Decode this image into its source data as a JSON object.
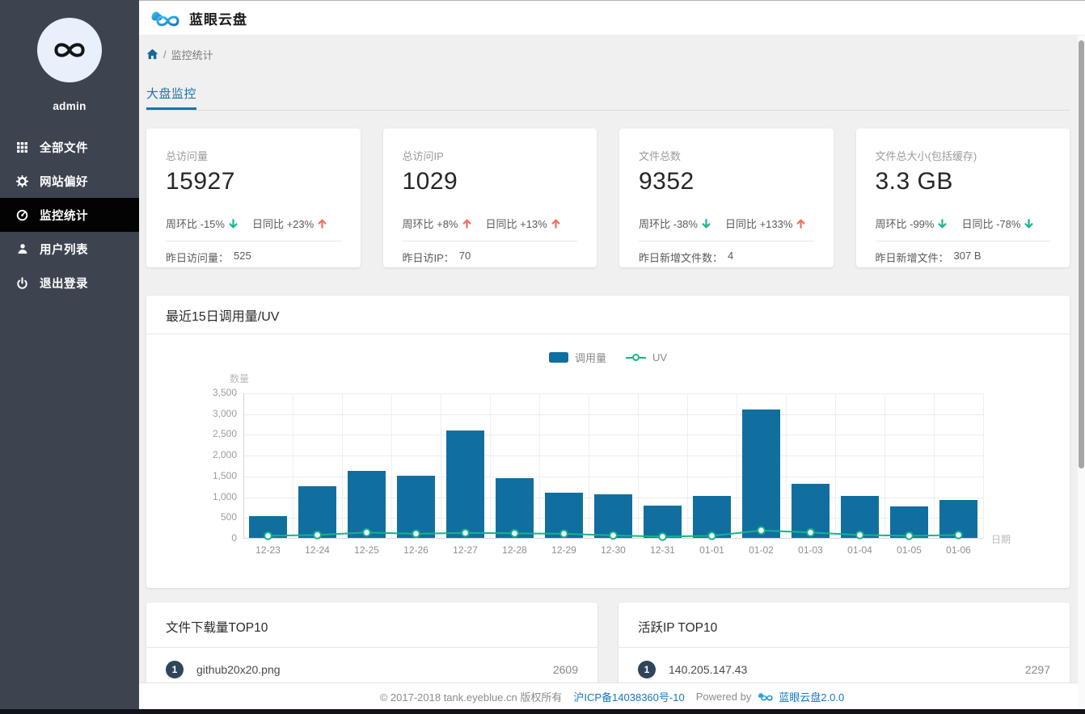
{
  "header": {
    "brand": "蓝眼云盘"
  },
  "sidebar": {
    "username": "admin",
    "items": [
      {
        "key": "all-files",
        "icon": "grid-icon",
        "label": "全部文件",
        "active": false
      },
      {
        "key": "site-preferences",
        "icon": "gear-icon",
        "label": "网站偏好",
        "active": false
      },
      {
        "key": "monitor-stats",
        "icon": "dashboard-icon",
        "label": "监控统计",
        "active": true
      },
      {
        "key": "user-list",
        "icon": "user-icon",
        "label": "用户列表",
        "active": false
      },
      {
        "key": "logout",
        "icon": "power-icon",
        "label": "退出登录",
        "active": false
      }
    ]
  },
  "breadcrumb": {
    "separator": "/",
    "current": "监控统计"
  },
  "tabs": [
    {
      "label": "大盘监控",
      "active": true
    }
  ],
  "stat_cards": [
    {
      "title": "总访问量",
      "value": "15927",
      "trends": [
        {
          "label": "周环比 -15%",
          "dir": "down"
        },
        {
          "label": "日同比 +23%",
          "dir": "up"
        }
      ],
      "footer_label": "昨日访问量：",
      "footer_value": "525"
    },
    {
      "title": "总访问IP",
      "value": "1029",
      "trends": [
        {
          "label": "周环比 +8%",
          "dir": "up"
        },
        {
          "label": "日同比 +13%",
          "dir": "up"
        }
      ],
      "footer_label": "昨日访IP：",
      "footer_value": "70"
    },
    {
      "title": "文件总数",
      "value": "9352",
      "trends": [
        {
          "label": "周环比 -38%",
          "dir": "down"
        },
        {
          "label": "日同比 +133%",
          "dir": "up"
        }
      ],
      "footer_label": "昨日新增文件数：",
      "footer_value": "4"
    },
    {
      "title": "文件总大小(包括缓存)",
      "value": "3.3 GB",
      "trends": [
        {
          "label": "周环比 -99%",
          "dir": "down"
        },
        {
          "label": "日同比 -78%",
          "dir": "down"
        }
      ],
      "footer_label": "昨日新增文件：",
      "footer_value": "307 B"
    }
  ],
  "chart_card": {
    "title": "最近15日调用量/UV"
  },
  "chart_data": {
    "type": "bar",
    "categories": [
      "12-23",
      "12-24",
      "12-25",
      "12-26",
      "12-27",
      "12-28",
      "12-29",
      "12-30",
      "12-31",
      "01-01",
      "01-02",
      "01-03",
      "01-04",
      "01-05",
      "01-06"
    ],
    "series": [
      {
        "name": "调用量",
        "type": "bar",
        "values": [
          530,
          1250,
          1620,
          1500,
          2580,
          1440,
          1080,
          1050,
          780,
          1010,
          3100,
          1300,
          1010,
          750,
          915
        ]
      },
      {
        "name": "UV",
        "type": "line",
        "values": [
          70,
          90,
          150,
          120,
          140,
          130,
          120,
          80,
          50,
          70,
          200,
          150,
          90,
          70,
          90
        ]
      }
    ],
    "title": "最近15日调用量/UV",
    "xlabel": "日期",
    "ylabel": "数量",
    "ylim": [
      0,
      3500
    ],
    "ytick_step": 500,
    "grid": true,
    "legend_position": "top-center"
  },
  "top_lists": [
    {
      "title": "文件下载量TOP10",
      "rows": [
        {
          "rank": "1",
          "name": "github20x20.png",
          "value": "2609"
        }
      ]
    },
    {
      "title": "活跃IP TOP10",
      "rows": [
        {
          "rank": "1",
          "name": "140.205.147.43",
          "value": "2297"
        }
      ]
    }
  ],
  "footer": {
    "copyright": "© 2017-2018 tank.eyeblue.cn 版权所有",
    "icp": "沪ICP备14038360号-10",
    "powered_by": "Powered by",
    "brand_version": "蓝眼云盘2.0.0"
  },
  "colors": {
    "bar": "#116fa0",
    "line": "#16b389",
    "trend_up": "#f1705f",
    "trend_down": "#1cb394",
    "accent_blue": "#1576a8",
    "link_blue": "#1677c1",
    "rank_badge": "#30455a",
    "sidebar_bg": "#3d4450",
    "sidebar_active_bg": "#030303"
  }
}
